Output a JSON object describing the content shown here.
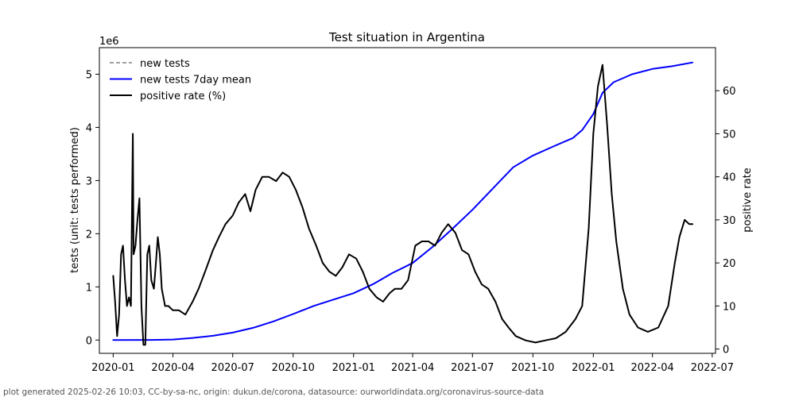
{
  "chart_data": {
    "type": "line",
    "title": "Test situation in Argentina",
    "xlabel": "",
    "ylabel_left": "tests (unit: tests performed)",
    "ylabel_right": "positive rate",
    "offset_label": "1e6",
    "y_left_scale": 1000000,
    "x_domain": [
      "2019-12-11",
      "2022-07-06"
    ],
    "ylim_left": [
      -250000,
      5500000
    ],
    "ylim_right": [
      -1,
      70
    ],
    "x_ticks": [
      {
        "date": "2020-01-01",
        "label": "2020-01"
      },
      {
        "date": "2020-04-01",
        "label": "2020-04"
      },
      {
        "date": "2020-07-01",
        "label": "2020-07"
      },
      {
        "date": "2020-10-01",
        "label": "2020-10"
      },
      {
        "date": "2021-01-01",
        "label": "2021-01"
      },
      {
        "date": "2021-04-01",
        "label": "2021-04"
      },
      {
        "date": "2021-07-01",
        "label": "2021-07"
      },
      {
        "date": "2021-10-01",
        "label": "2021-10"
      },
      {
        "date": "2022-01-01",
        "label": "2022-01"
      },
      {
        "date": "2022-04-01",
        "label": "2022-04"
      },
      {
        "date": "2022-07-01",
        "label": "2022-07"
      }
    ],
    "y_ticks_left": [
      {
        "value": 0,
        "label": "0"
      },
      {
        "value": 1000000,
        "label": "1"
      },
      {
        "value": 2000000,
        "label": "2"
      },
      {
        "value": 3000000,
        "label": "3"
      },
      {
        "value": 4000000,
        "label": "4"
      },
      {
        "value": 5000000,
        "label": "5"
      }
    ],
    "y_ticks_right": [
      {
        "value": 0,
        "label": "0"
      },
      {
        "value": 10,
        "label": "10"
      },
      {
        "value": 20,
        "label": "20"
      },
      {
        "value": 30,
        "label": "30"
      },
      {
        "value": 40,
        "label": "40"
      },
      {
        "value": 50,
        "label": "50"
      },
      {
        "value": 60,
        "label": "60"
      }
    ],
    "legend": [
      {
        "name": "new tests",
        "color": "#808080",
        "style": "dashed"
      },
      {
        "name": "new tests 7day mean",
        "color": "#0000ff",
        "style": "solid"
      },
      {
        "name": "positive rate (%)",
        "color": "#000000",
        "style": "solid"
      }
    ],
    "legend_position": "top-left",
    "series": [
      {
        "name": "new tests 7day mean",
        "axis": "left",
        "color": "#0000ff",
        "points": [
          [
            "2020-01-01",
            0
          ],
          [
            "2020-03-01",
            2000
          ],
          [
            "2020-04-01",
            10000
          ],
          [
            "2020-05-01",
            40000
          ],
          [
            "2020-06-01",
            80000
          ],
          [
            "2020-07-01",
            140000
          ],
          [
            "2020-08-01",
            230000
          ],
          [
            "2020-09-01",
            350000
          ],
          [
            "2020-10-01",
            490000
          ],
          [
            "2020-11-01",
            640000
          ],
          [
            "2020-12-01",
            760000
          ],
          [
            "2021-01-01",
            880000
          ],
          [
            "2021-02-01",
            1060000
          ],
          [
            "2021-03-01",
            1260000
          ],
          [
            "2021-04-01",
            1450000
          ],
          [
            "2021-05-01",
            1750000
          ],
          [
            "2021-06-01",
            2100000
          ],
          [
            "2021-07-01",
            2450000
          ],
          [
            "2021-08-01",
            2850000
          ],
          [
            "2021-09-01",
            3250000
          ],
          [
            "2021-10-01",
            3470000
          ],
          [
            "2021-11-01",
            3640000
          ],
          [
            "2021-12-01",
            3800000
          ],
          [
            "2021-12-15",
            3950000
          ],
          [
            "2022-01-01",
            4250000
          ],
          [
            "2022-01-15",
            4650000
          ],
          [
            "2022-02-01",
            4850000
          ],
          [
            "2022-03-01",
            5000000
          ],
          [
            "2022-04-01",
            5100000
          ],
          [
            "2022-05-01",
            5150000
          ],
          [
            "2022-06-01",
            5220000
          ]
        ]
      },
      {
        "name": "positive rate (%)",
        "axis": "right",
        "color": "#000000",
        "points": [
          [
            "2020-01-01",
            17
          ],
          [
            "2020-01-04",
            11
          ],
          [
            "2020-01-07",
            3
          ],
          [
            "2020-01-10",
            8
          ],
          [
            "2020-01-13",
            22
          ],
          [
            "2020-01-16",
            24
          ],
          [
            "2020-01-19",
            16
          ],
          [
            "2020-01-22",
            10
          ],
          [
            "2020-01-25",
            12
          ],
          [
            "2020-01-28",
            10
          ],
          [
            "2020-01-31",
            50
          ],
          [
            "2020-02-01",
            22
          ],
          [
            "2020-02-04",
            24
          ],
          [
            "2020-02-07",
            30
          ],
          [
            "2020-02-10",
            35
          ],
          [
            "2020-02-13",
            10
          ],
          [
            "2020-02-16",
            1
          ],
          [
            "2020-02-19",
            1
          ],
          [
            "2020-02-22",
            22
          ],
          [
            "2020-02-25",
            24
          ],
          [
            "2020-02-28",
            16
          ],
          [
            "2020-03-03",
            14
          ],
          [
            "2020-03-06",
            20
          ],
          [
            "2020-03-09",
            26
          ],
          [
            "2020-03-12",
            22
          ],
          [
            "2020-03-15",
            14
          ],
          [
            "2020-03-20",
            10
          ],
          [
            "2020-03-25",
            10
          ],
          [
            "2020-04-01",
            9
          ],
          [
            "2020-04-10",
            9
          ],
          [
            "2020-04-20",
            8
          ],
          [
            "2020-05-01",
            11
          ],
          [
            "2020-05-10",
            14
          ],
          [
            "2020-05-20",
            18
          ],
          [
            "2020-06-01",
            23
          ],
          [
            "2020-06-10",
            26
          ],
          [
            "2020-06-20",
            29
          ],
          [
            "2020-07-01",
            31
          ],
          [
            "2020-07-10",
            34
          ],
          [
            "2020-07-20",
            36
          ],
          [
            "2020-07-28",
            32
          ],
          [
            "2020-08-05",
            37
          ],
          [
            "2020-08-15",
            40
          ],
          [
            "2020-08-25",
            40
          ],
          [
            "2020-09-05",
            39
          ],
          [
            "2020-09-15",
            41
          ],
          [
            "2020-09-25",
            40
          ],
          [
            "2020-10-05",
            37
          ],
          [
            "2020-10-15",
            33
          ],
          [
            "2020-10-25",
            28
          ],
          [
            "2020-11-05",
            24
          ],
          [
            "2020-11-15",
            20
          ],
          [
            "2020-11-25",
            18
          ],
          [
            "2020-12-05",
            17
          ],
          [
            "2020-12-15",
            19
          ],
          [
            "2020-12-25",
            22
          ],
          [
            "2021-01-05",
            21
          ],
          [
            "2021-01-15",
            18
          ],
          [
            "2021-01-25",
            14
          ],
          [
            "2021-02-05",
            12
          ],
          [
            "2021-02-15",
            11
          ],
          [
            "2021-02-25",
            13
          ],
          [
            "2021-03-05",
            14
          ],
          [
            "2021-03-15",
            14
          ],
          [
            "2021-03-25",
            16
          ],
          [
            "2021-04-05",
            24
          ],
          [
            "2021-04-15",
            25
          ],
          [
            "2021-04-25",
            25
          ],
          [
            "2021-05-05",
            24
          ],
          [
            "2021-05-15",
            27
          ],
          [
            "2021-05-25",
            29
          ],
          [
            "2021-06-05",
            27
          ],
          [
            "2021-06-15",
            23
          ],
          [
            "2021-06-25",
            22
          ],
          [
            "2021-07-05",
            18
          ],
          [
            "2021-07-15",
            15
          ],
          [
            "2021-07-25",
            14
          ],
          [
            "2021-08-05",
            11
          ],
          [
            "2021-08-15",
            7
          ],
          [
            "2021-08-25",
            5
          ],
          [
            "2021-09-05",
            3
          ],
          [
            "2021-09-20",
            2
          ],
          [
            "2021-10-05",
            1.5
          ],
          [
            "2021-10-20",
            2
          ],
          [
            "2021-11-05",
            2.5
          ],
          [
            "2021-11-20",
            4
          ],
          [
            "2021-12-05",
            7
          ],
          [
            "2021-12-15",
            10
          ],
          [
            "2021-12-25",
            28
          ],
          [
            "2022-01-01",
            50
          ],
          [
            "2022-01-08",
            61
          ],
          [
            "2022-01-15",
            66
          ],
          [
            "2022-01-22",
            52
          ],
          [
            "2022-01-29",
            36
          ],
          [
            "2022-02-05",
            25
          ],
          [
            "2022-02-15",
            14
          ],
          [
            "2022-02-25",
            8
          ],
          [
            "2022-03-10",
            5
          ],
          [
            "2022-03-25",
            4
          ],
          [
            "2022-04-10",
            5
          ],
          [
            "2022-04-25",
            10
          ],
          [
            "2022-05-05",
            20
          ],
          [
            "2022-05-12",
            26
          ],
          [
            "2022-05-20",
            30
          ],
          [
            "2022-05-27",
            29
          ],
          [
            "2022-06-01",
            29
          ]
        ]
      }
    ]
  },
  "footer": {
    "text": "plot generated 2025-02-26 10:03, CC-by-sa-nc, origin: dukun.de/corona, datasource: ourworldindata.org/coronavirus-source-data"
  }
}
